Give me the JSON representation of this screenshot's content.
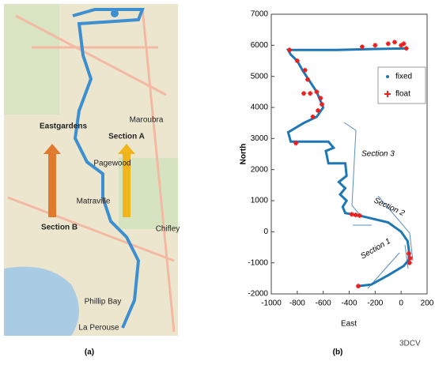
{
  "map": {
    "labels": [
      "Section A",
      "Section B",
      "Eastgardens",
      "Maroubra",
      "Pagewood",
      "Matraville",
      "Chifley",
      "Phillip Bay",
      "La Perouse"
    ]
  },
  "captions": [
    "(a)",
    "(b)"
  ],
  "watermark": "3DCV",
  "chart_data": {
    "type": "scatter",
    "xlabel": "East",
    "ylabel": "North",
    "xlim": [
      -1000,
      200
    ],
    "xticks": [
      -1000,
      -800,
      -600,
      -400,
      -200,
      0,
      200
    ],
    "ylim": [
      -2000,
      7000
    ],
    "yticks": [
      -2000,
      -1000,
      0,
      1000,
      2000,
      3000,
      4000,
      5000,
      6000,
      7000
    ],
    "legend": "upper right",
    "annotations": [
      "Section 1",
      "Section 2",
      "Section 3"
    ],
    "series": [
      {
        "name": "fixed",
        "color": "#1f77b4",
        "x": [
          -330,
          -230,
          -100,
          20,
          60,
          60,
          50,
          0,
          -100,
          -300,
          -430,
          -450,
          -420,
          -470,
          -430,
          -480,
          -420,
          -430,
          -560,
          -580,
          -520,
          -560,
          -700,
          -850,
          -870,
          -750,
          -650,
          -600,
          -650,
          -760,
          -800,
          -850,
          -870,
          -500,
          -200,
          50
        ],
        "y": [
          -1750,
          -1700,
          -1400,
          -1100,
          -900,
          -600,
          -300,
          0,
          300,
          500,
          600,
          800,
          1000,
          1200,
          1400,
          1600,
          1800,
          2200,
          2200,
          2600,
          2700,
          2900,
          2900,
          2900,
          3200,
          3500,
          3700,
          4000,
          4500,
          5200,
          5500,
          5700,
          5850,
          5850,
          5880,
          5900
        ]
      },
      {
        "name": "float",
        "color": "#e8201e",
        "x": [
          -330,
          60,
          70,
          65,
          -380,
          -350,
          -320,
          -810,
          -680,
          -640,
          -610,
          -620,
          -650,
          -700,
          -750,
          -720,
          -740,
          -800,
          -860,
          -300,
          -200,
          -100,
          0,
          40,
          -50,
          20
        ],
        "y": [
          -1750,
          -700,
          -850,
          -1000,
          560,
          540,
          520,
          2850,
          3700,
          3900,
          4100,
          4300,
          4500,
          4450,
          4450,
          4900,
          5200,
          5500,
          5850,
          5950,
          6000,
          6050,
          6000,
          5900,
          6100,
          6050
        ]
      }
    ]
  }
}
